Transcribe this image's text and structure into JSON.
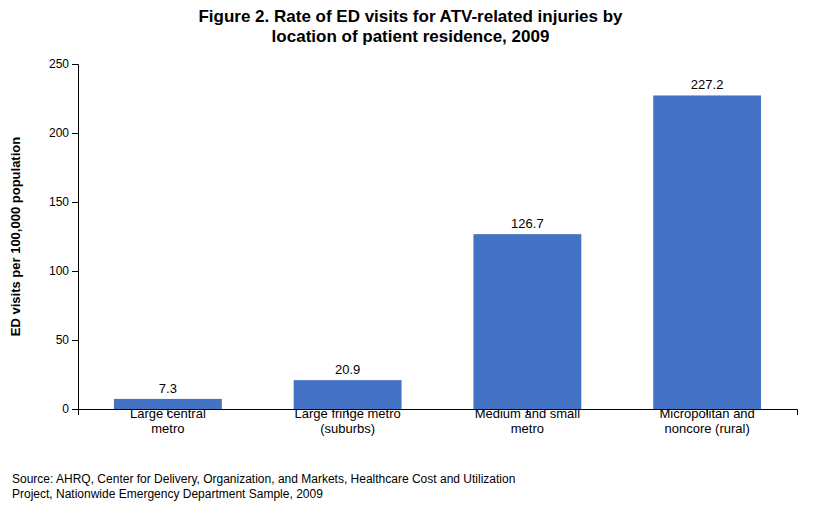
{
  "chart_data": {
    "type": "bar",
    "title": "Figure 2.  Rate of ED visits for ATV-related injuries by\nlocation of patient residence, 2009",
    "categories": [
      "Large central\nmetro",
      "Large fringe metro\n(suburbs)",
      "Medium and small\nmetro",
      "Micropolitan and\nnoncore (rural)"
    ],
    "values": [
      7.3,
      20.9,
      126.7,
      227.2
    ],
    "color": "#4472C4",
    "ylabel": "ED visits per 100,000 population",
    "ylim": [
      0,
      250
    ],
    "yticks": [
      0,
      50,
      100,
      150,
      200,
      250
    ],
    "data_labels": true,
    "grid": false,
    "annotations": [
      "Source: AHRQ, Center for Delivery, Organization, and Markets, Healthcare Cost and Utilization\nProject, Nationwide Emergency Department Sample, 2009"
    ]
  }
}
